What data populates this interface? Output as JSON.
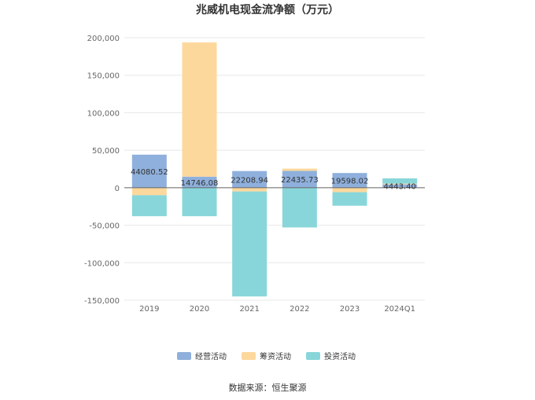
{
  "chart_data": {
    "type": "bar",
    "stacked": true,
    "title": "兆威机电现金流净额（万元）",
    "categories": [
      "2019",
      "2020",
      "2021",
      "2022",
      "2023",
      "2024Q1"
    ],
    "series": [
      {
        "name": "经营活动",
        "color": "#8fb0dc",
        "values": [
          44080.52,
          14746.08,
          22208.94,
          22435.73,
          19598.02,
          4443.4
        ]
      },
      {
        "name": "筹资活动",
        "color": "#fdd89d",
        "values": [
          -10000,
          179000,
          -5000,
          3000,
          -6000,
          1000
        ]
      },
      {
        "name": "投资活动",
        "color": "#88d6da",
        "values": [
          -28000,
          -38000,
          -140000,
          -53000,
          -18000,
          7000
        ]
      }
    ],
    "data_labels": [
      "44080.52",
      "14746.08",
      "22208.94",
      "22435.73",
      "19598.02",
      "4443.40"
    ],
    "ylim": [
      -150000,
      200000
    ],
    "yticks": [
      200000,
      150000,
      100000,
      50000,
      0,
      -50000,
      -100000,
      -150000
    ],
    "ytick_labels": [
      "200,000",
      "150,000",
      "100,000",
      "50,000",
      "0",
      "-50,000",
      "-100,000",
      "-150,000"
    ],
    "grid": true,
    "legend_position": "bottom"
  },
  "source_text": "数据来源：恒生聚源"
}
